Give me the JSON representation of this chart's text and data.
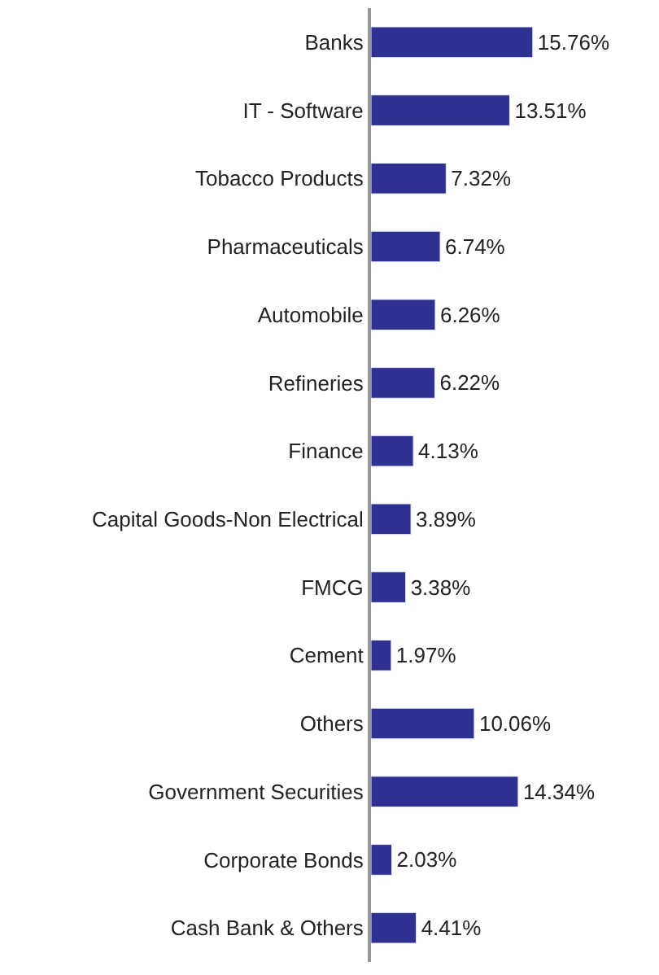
{
  "chart_data": {
    "type": "bar",
    "orientation": "horizontal",
    "categories": [
      "Banks",
      "IT - Software",
      "Tobacco Products",
      "Pharmaceuticals",
      "Automobile",
      "Refineries",
      "Finance",
      "Capital Goods-Non Electrical",
      "FMCG",
      "Cement",
      "Others",
      "Government Securities",
      "Corporate Bonds",
      "Cash Bank & Others"
    ],
    "values": [
      15.76,
      13.51,
      7.32,
      6.74,
      6.26,
      6.22,
      4.13,
      3.89,
      3.38,
      1.97,
      10.06,
      14.34,
      2.03,
      4.41
    ],
    "value_labels": [
      "15.76%",
      "13.51%",
      "7.32%",
      "6.74%",
      "6.26%",
      "6.22%",
      "4.13%",
      "3.89%",
      "3.38%",
      "1.97%",
      "10.06%",
      "14.34%",
      "2.03%",
      "4.41%"
    ],
    "color": "#2e3192",
    "legend": false,
    "tick_labels": "y"
  }
}
